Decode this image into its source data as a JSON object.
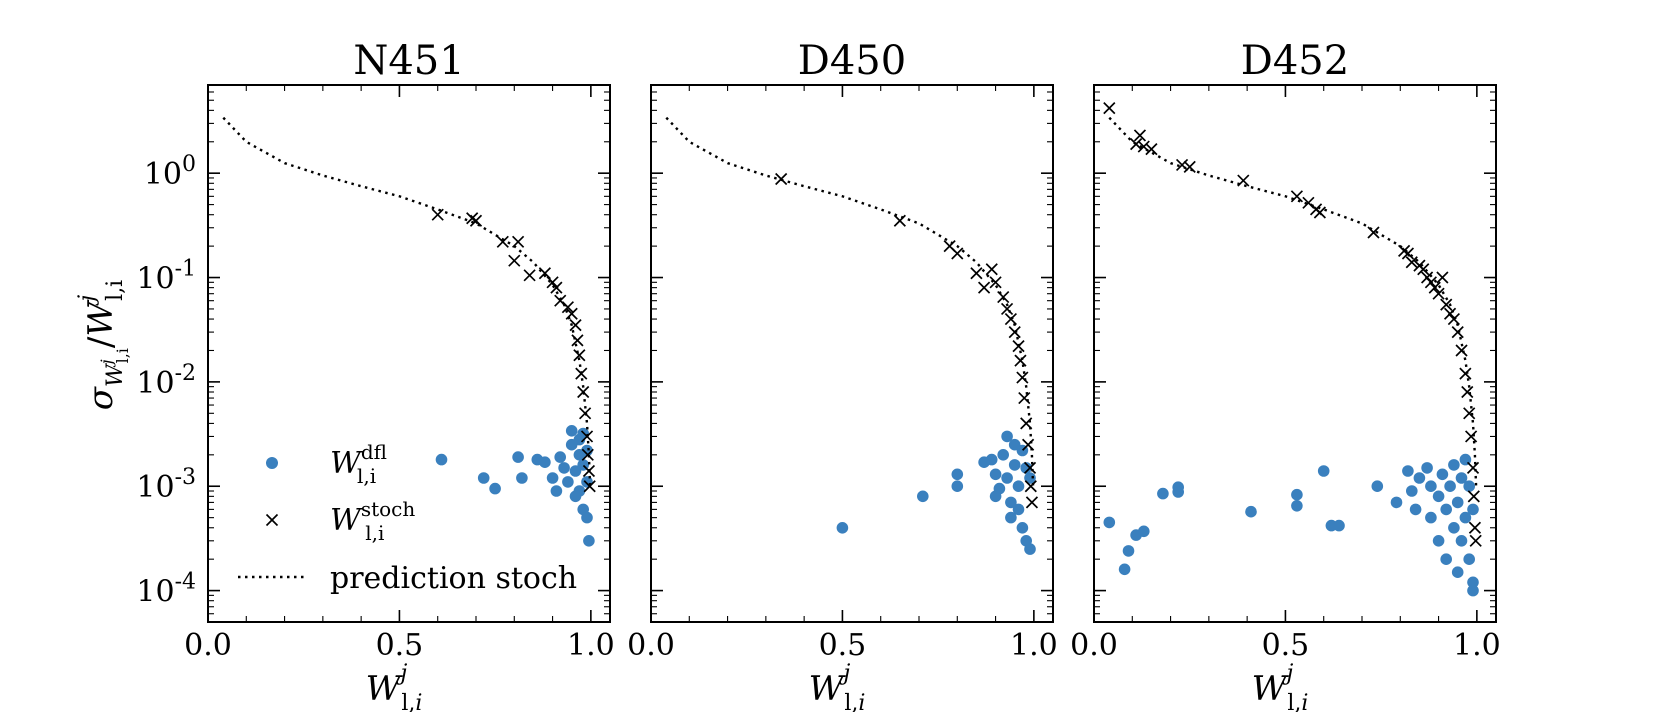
{
  "figure": {
    "ylabel": "σ_{W^j_{l,i}}/W^j_{l,i}",
    "legend": {
      "placement": "lower-left",
      "entries": [
        {
          "key": "dfl",
          "label": "W_{l,i}^{dfl}",
          "base": "W",
          "sub": "l,i",
          "sup": "dfl",
          "marker": "circle",
          "color": "#3a80be"
        },
        {
          "key": "stoch",
          "label": "W_{l,i}^{stoch}",
          "base": "W",
          "sub": "l,i",
          "sup": "stoch",
          "marker": "x",
          "color": "#000000"
        },
        {
          "key": "pred",
          "label": "prediction stoch",
          "marker": "dotted-line",
          "color": "#000000"
        }
      ]
    }
  },
  "chart_data": [
    {
      "type": "scatter",
      "title": "N451",
      "xlabel": "W^j_{l,i}",
      "ylabel": "σ_{W^j_{l,i}}/W^j_{l,i}",
      "xlim": [
        0.0,
        1.05
      ],
      "ylim": [
        5e-05,
        7
      ],
      "yscale": "log",
      "xticks": [
        "0.0",
        "0.5",
        "1.0"
      ],
      "yticks": [
        "10^0",
        "10^-1",
        "10^-2",
        "10^-3",
        "10^-4"
      ],
      "series": [
        {
          "name": "W_{l,i}^{dfl}",
          "marker": "circle",
          "points": [
            [
              0.61,
              0.0018
            ],
            [
              0.72,
              0.0012
            ],
            [
              0.75,
              0.00095
            ],
            [
              0.81,
              0.0019
            ],
            [
              0.82,
              0.0012
            ],
            [
              0.86,
              0.0018
            ],
            [
              0.88,
              0.0017
            ],
            [
              0.9,
              0.0012
            ],
            [
              0.91,
              0.0009
            ],
            [
              0.92,
              0.0019
            ],
            [
              0.93,
              0.0015
            ],
            [
              0.94,
              0.0011
            ],
            [
              0.95,
              0.0034
            ],
            [
              0.95,
              0.0025
            ],
            [
              0.96,
              0.0014
            ],
            [
              0.96,
              0.0008
            ],
            [
              0.97,
              0.0028
            ],
            [
              0.97,
              0.002
            ],
            [
              0.97,
              0.0009
            ],
            [
              0.98,
              0.0032
            ],
            [
              0.98,
              0.0016
            ],
            [
              0.98,
              0.0006
            ],
            [
              0.99,
              0.0022
            ],
            [
              0.99,
              0.0011
            ],
            [
              0.99,
              0.0005
            ],
            [
              0.995,
              0.0003
            ]
          ]
        },
        {
          "name": "W_{l,i}^{stoch}",
          "marker": "x",
          "points": [
            [
              0.6,
              0.4
            ],
            [
              0.69,
              0.37
            ],
            [
              0.7,
              0.35
            ],
            [
              0.77,
              0.22
            ],
            [
              0.81,
              0.22
            ],
            [
              0.8,
              0.145
            ],
            [
              0.84,
              0.105
            ],
            [
              0.88,
              0.11
            ],
            [
              0.9,
              0.09
            ],
            [
              0.91,
              0.08
            ],
            [
              0.92,
              0.06
            ],
            [
              0.94,
              0.052
            ],
            [
              0.95,
              0.045
            ],
            [
              0.96,
              0.035
            ],
            [
              0.965,
              0.025
            ],
            [
              0.97,
              0.018
            ],
            [
              0.975,
              0.012
            ],
            [
              0.98,
              0.008
            ],
            [
              0.985,
              0.005
            ],
            [
              0.99,
              0.003
            ],
            [
              0.992,
              0.002
            ],
            [
              0.995,
              0.0014
            ],
            [
              0.997,
              0.001
            ]
          ]
        },
        {
          "name": "prediction stoch",
          "marker": "dotted-line",
          "points": [
            [
              0.04,
              3.4
            ],
            [
              0.1,
              2.0
            ],
            [
              0.2,
              1.25
            ],
            [
              0.3,
              0.95
            ],
            [
              0.4,
              0.75
            ],
            [
              0.5,
              0.6
            ],
            [
              0.6,
              0.45
            ],
            [
              0.7,
              0.33
            ],
            [
              0.8,
              0.2
            ],
            [
              0.85,
              0.14
            ],
            [
              0.9,
              0.085
            ],
            [
              0.93,
              0.055
            ],
            [
              0.95,
              0.035
            ],
            [
              0.97,
              0.016
            ],
            [
              0.98,
              0.009
            ],
            [
              0.99,
              0.004
            ],
            [
              0.995,
              0.002
            ],
            [
              0.998,
              0.001
            ]
          ]
        }
      ]
    },
    {
      "type": "scatter",
      "title": "D450",
      "xlabel": "W^j_{l,i}",
      "xlim": [
        0.0,
        1.05
      ],
      "ylim": [
        5e-05,
        7
      ],
      "yscale": "log",
      "xticks": [
        "0.0",
        "0.5",
        "1.0"
      ],
      "series": [
        {
          "name": "W_{l,i}^{dfl}",
          "marker": "circle",
          "points": [
            [
              0.5,
              0.0004
            ],
            [
              0.71,
              0.0008
            ],
            [
              0.8,
              0.0013
            ],
            [
              0.8,
              0.001
            ],
            [
              0.87,
              0.0017
            ],
            [
              0.89,
              0.0018
            ],
            [
              0.9,
              0.0013
            ],
            [
              0.9,
              0.0008
            ],
            [
              0.91,
              0.00095
            ],
            [
              0.92,
              0.002
            ],
            [
              0.93,
              0.003
            ],
            [
              0.93,
              0.0012
            ],
            [
              0.94,
              0.0007
            ],
            [
              0.94,
              0.0005
            ],
            [
              0.95,
              0.0025
            ],
            [
              0.95,
              0.0016
            ],
            [
              0.96,
              0.001
            ],
            [
              0.96,
              0.0006
            ],
            [
              0.97,
              0.0022
            ],
            [
              0.97,
              0.0004
            ],
            [
              0.98,
              0.0015
            ],
            [
              0.98,
              0.0003
            ],
            [
              0.99,
              0.0012
            ],
            [
              0.99,
              0.00025
            ]
          ]
        },
        {
          "name": "W_{l,i}^{stoch}",
          "marker": "x",
          "points": [
            [
              0.34,
              0.88
            ],
            [
              0.65,
              0.35
            ],
            [
              0.78,
              0.2
            ],
            [
              0.8,
              0.17
            ],
            [
              0.85,
              0.11
            ],
            [
              0.87,
              0.08
            ],
            [
              0.89,
              0.12
            ],
            [
              0.9,
              0.09
            ],
            [
              0.92,
              0.065
            ],
            [
              0.93,
              0.05
            ],
            [
              0.94,
              0.04
            ],
            [
              0.95,
              0.03
            ],
            [
              0.96,
              0.022
            ],
            [
              0.965,
              0.016
            ],
            [
              0.97,
              0.011
            ],
            [
              0.975,
              0.007
            ],
            [
              0.98,
              0.004
            ],
            [
              0.985,
              0.0025
            ],
            [
              0.99,
              0.0015
            ],
            [
              0.992,
              0.001
            ],
            [
              0.995,
              0.0007
            ]
          ]
        },
        {
          "name": "prediction stoch",
          "marker": "dotted-line",
          "points": [
            [
              0.04,
              3.4
            ],
            [
              0.1,
              2.0
            ],
            [
              0.2,
              1.25
            ],
            [
              0.3,
              0.95
            ],
            [
              0.4,
              0.75
            ],
            [
              0.5,
              0.6
            ],
            [
              0.6,
              0.45
            ],
            [
              0.7,
              0.33
            ],
            [
              0.8,
              0.2
            ],
            [
              0.85,
              0.14
            ],
            [
              0.9,
              0.085
            ],
            [
              0.93,
              0.055
            ],
            [
              0.95,
              0.035
            ],
            [
              0.97,
              0.016
            ],
            [
              0.98,
              0.009
            ],
            [
              0.99,
              0.004
            ],
            [
              0.995,
              0.002
            ],
            [
              0.998,
              0.001
            ]
          ]
        }
      ]
    },
    {
      "type": "scatter",
      "title": "D452",
      "xlabel": "W^j_{l,i}",
      "xlim": [
        0.0,
        1.05
      ],
      "ylim": [
        5e-05,
        7
      ],
      "yscale": "log",
      "xticks": [
        "0.0",
        "0.5",
        "1.0"
      ],
      "series": [
        {
          "name": "W_{l,i}^{dfl}",
          "marker": "circle",
          "points": [
            [
              0.04,
              0.00045
            ],
            [
              0.08,
              0.00016
            ],
            [
              0.09,
              0.00024
            ],
            [
              0.11,
              0.00034
            ],
            [
              0.13,
              0.00037
            ],
            [
              0.18,
              0.00085
            ],
            [
              0.22,
              0.00098
            ],
            [
              0.22,
              0.00088
            ],
            [
              0.41,
              0.00057
            ],
            [
              0.53,
              0.00083
            ],
            [
              0.53,
              0.00065
            ],
            [
              0.6,
              0.0014
            ],
            [
              0.62,
              0.00042
            ],
            [
              0.64,
              0.00042
            ],
            [
              0.74,
              0.001
            ],
            [
              0.79,
              0.0007
            ],
            [
              0.82,
              0.0014
            ],
            [
              0.83,
              0.0009
            ],
            [
              0.84,
              0.0006
            ],
            [
              0.85,
              0.0012
            ],
            [
              0.87,
              0.0015
            ],
            [
              0.88,
              0.001
            ],
            [
              0.88,
              0.0005
            ],
            [
              0.9,
              0.0008
            ],
            [
              0.9,
              0.0003
            ],
            [
              0.91,
              0.0013
            ],
            [
              0.92,
              0.0006
            ],
            [
              0.92,
              0.0002
            ],
            [
              0.93,
              0.001
            ],
            [
              0.94,
              0.0016
            ],
            [
              0.94,
              0.0004
            ],
            [
              0.95,
              0.0007
            ],
            [
              0.95,
              0.00015
            ],
            [
              0.96,
              0.0012
            ],
            [
              0.96,
              0.0003
            ],
            [
              0.97,
              0.0005
            ],
            [
              0.97,
              0.0018
            ],
            [
              0.98,
              0.0002
            ],
            [
              0.98,
              0.001
            ],
            [
              0.99,
              0.00012
            ],
            [
              0.99,
              0.0006
            ],
            [
              0.99,
              0.0001
            ]
          ]
        },
        {
          "name": "W_{l,i}^{stoch}",
          "marker": "x",
          "points": [
            [
              0.04,
              4.2
            ],
            [
              0.11,
              1.9
            ],
            [
              0.12,
              2.3
            ],
            [
              0.13,
              1.8
            ],
            [
              0.15,
              1.7
            ],
            [
              0.23,
              1.2
            ],
            [
              0.25,
              1.15
            ],
            [
              0.39,
              0.85
            ],
            [
              0.53,
              0.6
            ],
            [
              0.56,
              0.52
            ],
            [
              0.58,
              0.45
            ],
            [
              0.59,
              0.42
            ],
            [
              0.73,
              0.27
            ],
            [
              0.81,
              0.18
            ],
            [
              0.82,
              0.17
            ],
            [
              0.83,
              0.14
            ],
            [
              0.85,
              0.13
            ],
            [
              0.86,
              0.12
            ],
            [
              0.87,
              0.1
            ],
            [
              0.88,
              0.09
            ],
            [
              0.89,
              0.08
            ],
            [
              0.9,
              0.07
            ],
            [
              0.91,
              0.1
            ],
            [
              0.92,
              0.055
            ],
            [
              0.93,
              0.045
            ],
            [
              0.94,
              0.04
            ],
            [
              0.95,
              0.03
            ],
            [
              0.96,
              0.02
            ],
            [
              0.97,
              0.012
            ],
            [
              0.975,
              0.008
            ],
            [
              0.98,
              0.005
            ],
            [
              0.985,
              0.003
            ],
            [
              0.99,
              0.0015
            ],
            [
              0.992,
              0.0008
            ],
            [
              0.995,
              0.0004
            ],
            [
              0.997,
              0.0003
            ]
          ]
        },
        {
          "name": "prediction stoch",
          "marker": "dotted-line",
          "points": [
            [
              0.04,
              3.4
            ],
            [
              0.1,
              2.0
            ],
            [
              0.2,
              1.25
            ],
            [
              0.3,
              0.95
            ],
            [
              0.4,
              0.75
            ],
            [
              0.5,
              0.6
            ],
            [
              0.6,
              0.45
            ],
            [
              0.7,
              0.33
            ],
            [
              0.8,
              0.2
            ],
            [
              0.85,
              0.14
            ],
            [
              0.9,
              0.085
            ],
            [
              0.93,
              0.055
            ],
            [
              0.95,
              0.035
            ],
            [
              0.97,
              0.016
            ],
            [
              0.98,
              0.009
            ],
            [
              0.99,
              0.004
            ],
            [
              0.995,
              0.002
            ],
            [
              0.998,
              0.001
            ]
          ]
        }
      ]
    }
  ]
}
